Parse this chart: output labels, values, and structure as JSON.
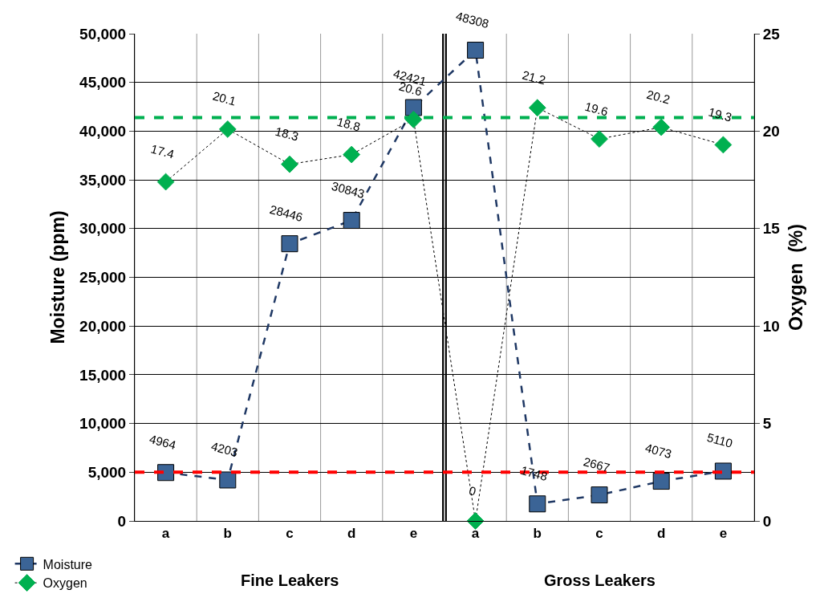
{
  "chart_data": {
    "type": "line",
    "categories": [
      "a",
      "b",
      "c",
      "d",
      "e",
      "a",
      "b",
      "c",
      "d",
      "e"
    ],
    "series": [
      {
        "name": "Moisture",
        "color": "#3b6496",
        "marker": "square",
        "line_style": "dashed",
        "values": [
          4964,
          4203,
          28446,
          30843,
          42421,
          48308,
          1748,
          2667,
          4073,
          5110
        ]
      },
      {
        "name": "Oxygen",
        "color": "#00b050",
        "marker": "diamond",
        "line_style": "dotted",
        "axis": "y2",
        "values": [
          17.4,
          20.1,
          18.3,
          18.8,
          20.6,
          0,
          21.2,
          19.6,
          20.2,
          19.3
        ]
      }
    ],
    "data_labels": true,
    "ylabel": "Moisture (ppm)",
    "y2label": "Oxygen  (%)",
    "ylim": [
      0,
      50000
    ],
    "yticks": [
      0,
      {
        "value": 5000,
        "label": "5,000"
      },
      {
        "value": 10000,
        "label": "10,000"
      },
      {
        "value": 15000,
        "label": "15,000"
      },
      {
        "value": 20000,
        "label": "20,000"
      },
      {
        "value": 25000,
        "label": "25,000"
      },
      {
        "value": 30000,
        "label": "30,000"
      },
      {
        "value": 35000,
        "label": "35,000"
      },
      {
        "value": 40000,
        "label": "40,000"
      },
      {
        "value": 45000,
        "label": "45,000"
      },
      {
        "value": 50000,
        "label": "50,000"
      }
    ],
    "y2lim": [
      0,
      25
    ],
    "y2ticks": [
      0,
      5,
      10,
      15,
      20,
      25
    ],
    "ref_lines": [
      {
        "axis": "y",
        "value": 5000,
        "color": "#ff0000",
        "line_style": "dashed"
      },
      {
        "axis": "y2",
        "value": 20.7,
        "color": "#00b050",
        "line_style": "dashed"
      }
    ],
    "annotations": [
      "Fine Leakers",
      "Gross Leakers"
    ],
    "grid": true,
    "legend": "bottom left"
  }
}
